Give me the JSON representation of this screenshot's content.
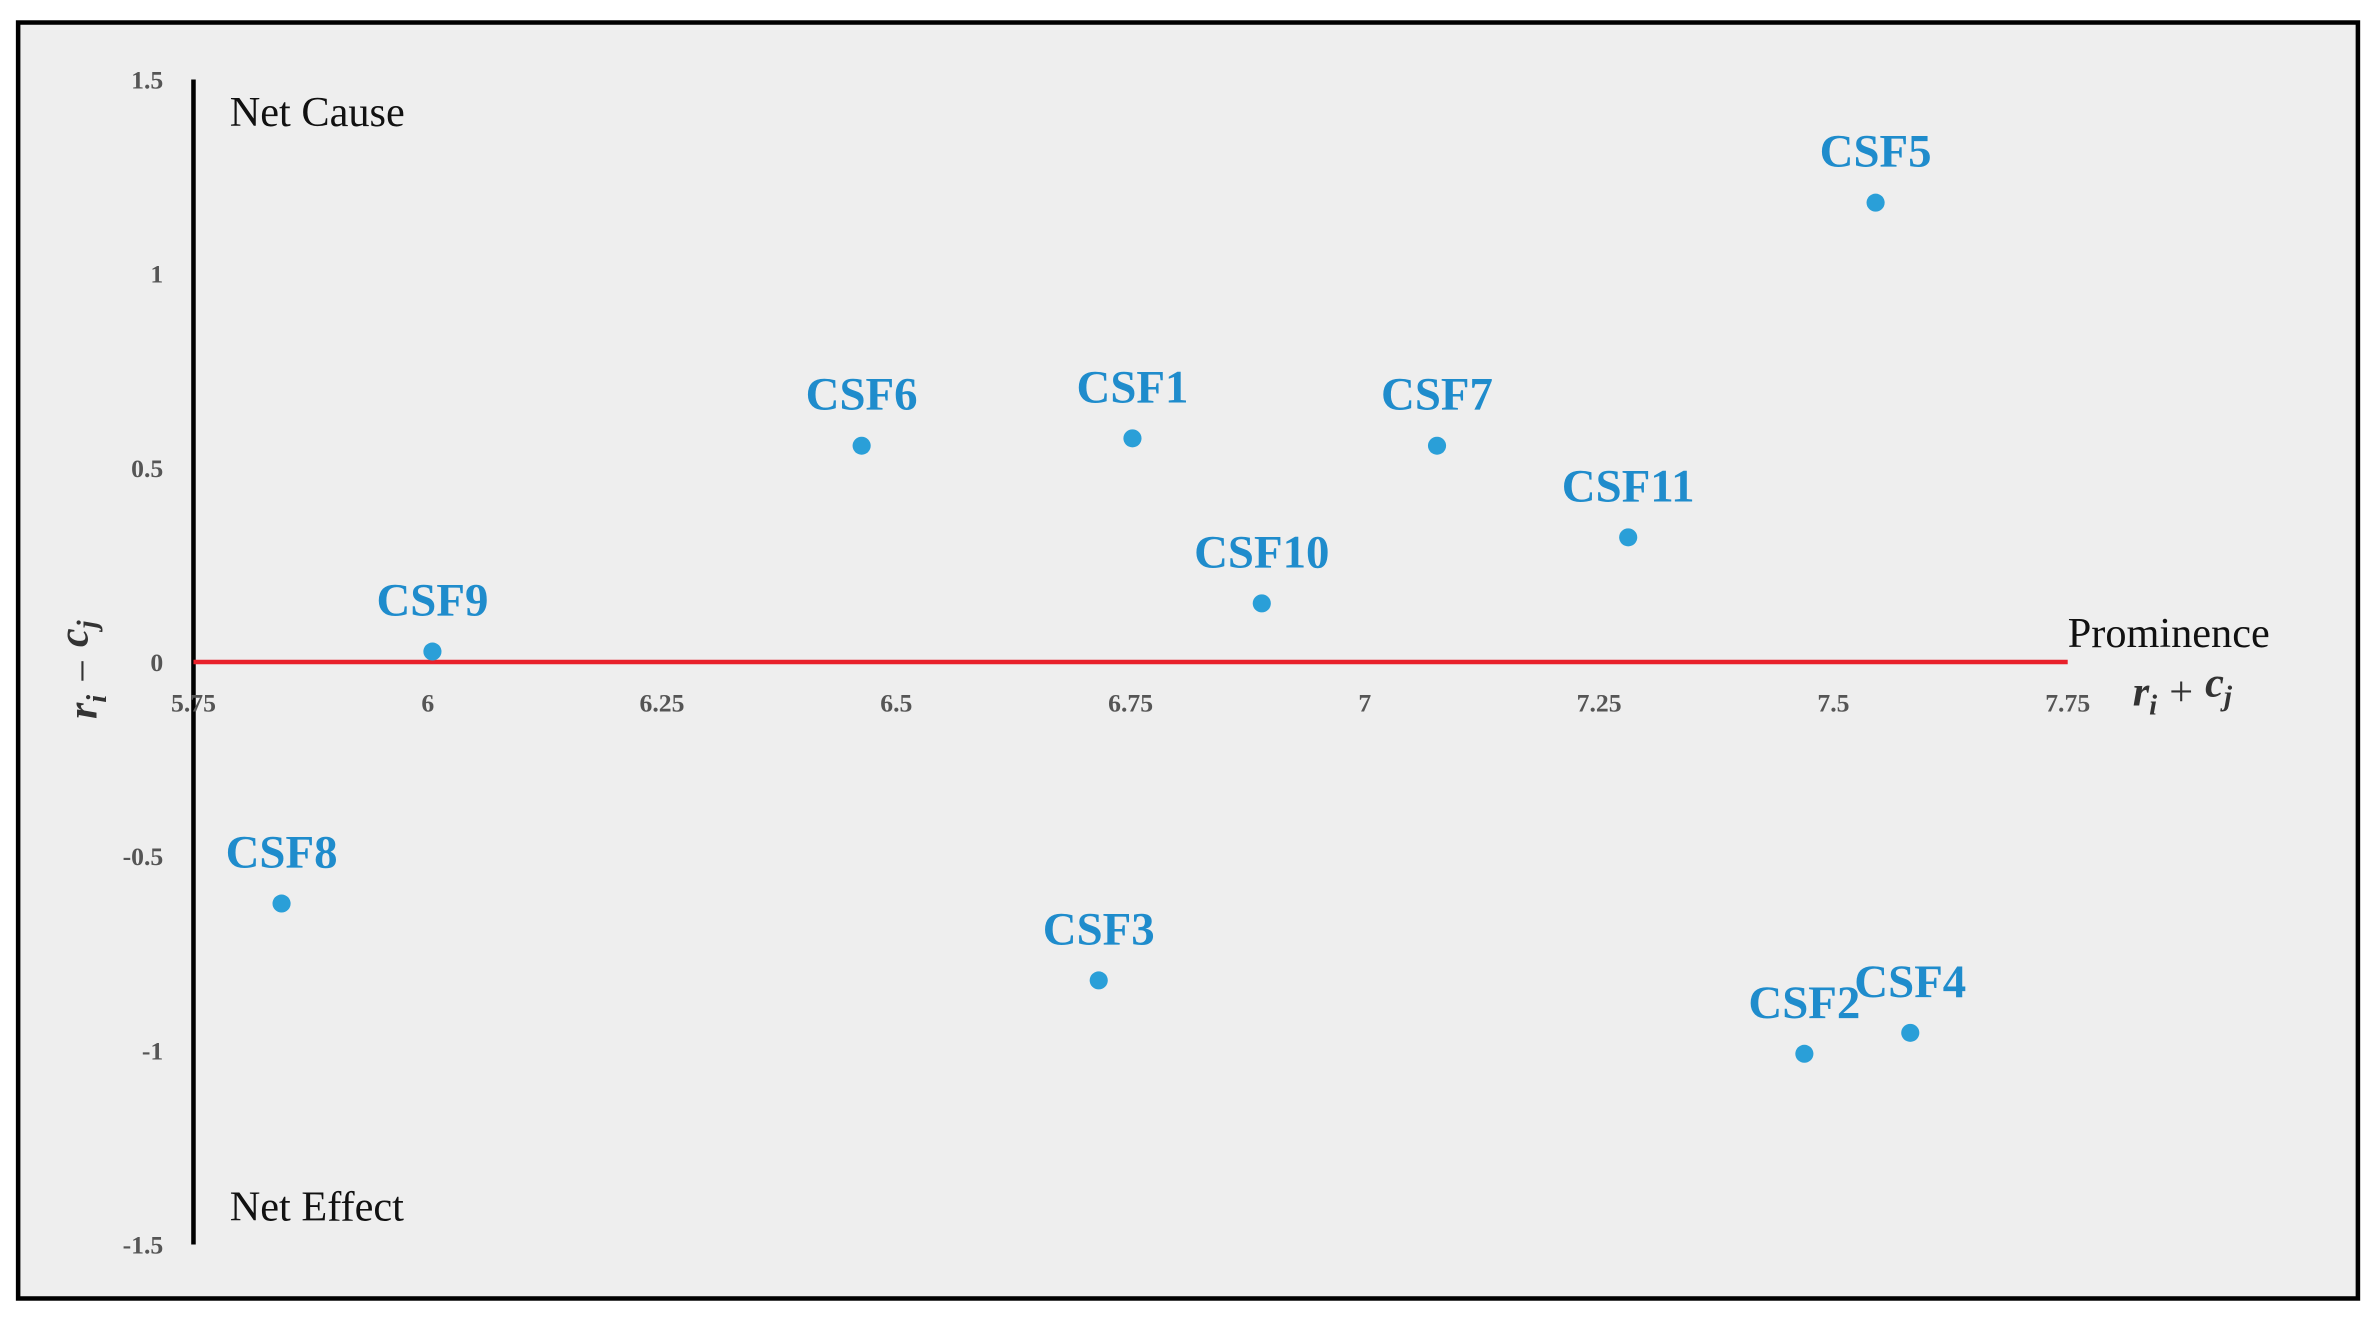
{
  "chart_data": {
    "type": "scatter",
    "labels": [
      "CSF1",
      "CSF2",
      "CSF3",
      "CSF4",
      "CSF5",
      "CSF6",
      "CSF7",
      "CSF8",
      "CSF9",
      "CSF10",
      "CSF11"
    ],
    "x": [
      6.752,
      7.469,
      6.716,
      7.582,
      7.545,
      6.463,
      7.077,
      5.844,
      6.005,
      6.89,
      7.281
    ],
    "values": [
      0.576,
      -1.009,
      -0.82,
      -0.955,
      1.183,
      0.557,
      0.557,
      -0.622,
      0.027,
      0.151,
      0.321
    ],
    "color": "#2a9fd8",
    "xlim": [
      5.75,
      7.75
    ],
    "xticks": [
      5.75,
      6,
      6.25,
      6.5,
      6.75,
      7,
      7.25,
      7.5,
      7.75
    ],
    "ylim": [
      -1.5,
      1.5
    ],
    "yticks": [
      1.5,
      1,
      0.5,
      0,
      -0.5,
      -1,
      -1.5
    ],
    "annotations": [
      "Net Cause",
      "Net Effect",
      "Prominence"
    ],
    "xlabel": [
      "r",
      "i",
      "+",
      "c",
      "j"
    ],
    "ylabel": [
      "r",
      "i",
      "−",
      "c",
      "j"
    ],
    "zero_line_color": "#e8202a"
  }
}
